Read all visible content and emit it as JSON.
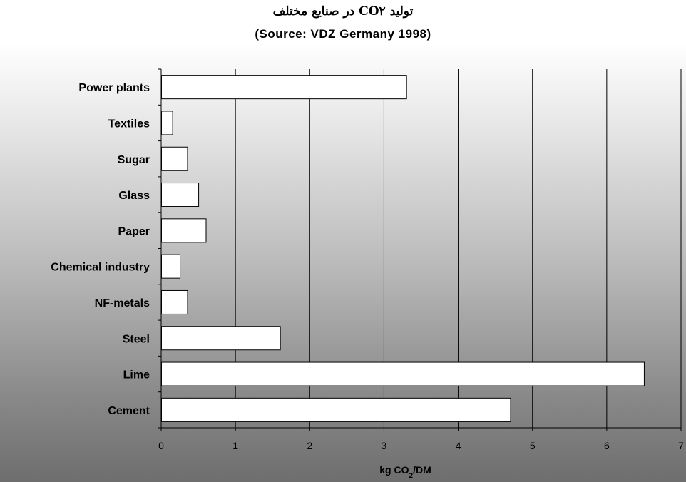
{
  "chart_data": {
    "type": "bar",
    "orientation": "horizontal",
    "title": "تولید CO۲ در صنایع مختلف",
    "subtitle": "(Source: VDZ Germany 1998)",
    "xlabel_prefix": "kg CO",
    "xlabel_subscript": "2",
    "xlabel_suffix": "/DM",
    "ylabel": "",
    "categories": [
      "Power plants",
      "Textiles",
      "Sugar",
      "Glass",
      "Paper",
      "Chemical industry",
      "NF-metals",
      "Steel",
      "Lime",
      "Cement"
    ],
    "values": [
      3.3,
      0.15,
      0.35,
      0.5,
      0.6,
      0.25,
      0.35,
      1.6,
      6.5,
      4.7
    ],
    "xlim": [
      0,
      7
    ],
    "xticks": [
      "0",
      "1",
      "2",
      "3",
      "4",
      "5",
      "6",
      "7"
    ],
    "grid": "vertical",
    "legend": "none",
    "colors": {
      "bar_fill": "#ffffff",
      "bar_stroke": "#000000",
      "grid": "#000000",
      "background_top": "#ffffff",
      "background_bottom": "#6e6e6e"
    }
  }
}
